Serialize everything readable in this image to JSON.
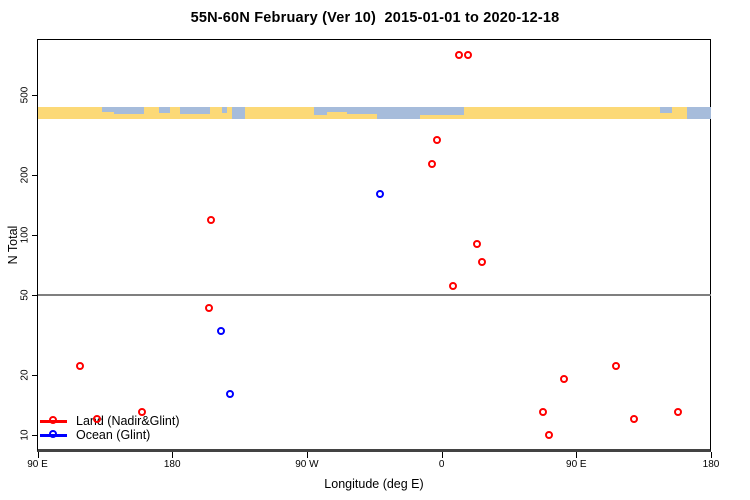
{
  "title": "55N-60N February (Ver 10)  2015-01-01 to 2020-12-18",
  "colors": {
    "land_series": "#ff0000",
    "ocean_series": "#0000ff",
    "map_land": "#fcd977",
    "map_ocean": "#a6bcdb",
    "reference_line": "#7f7f7f",
    "axis": "#000000"
  },
  "legend": {
    "items": [
      {
        "label": "Land (Nadir&Glint)",
        "color": "#ff0000"
      },
      {
        "label": "Ocean (Glint)",
        "color": "#0000ff"
      }
    ]
  },
  "chart_data": {
    "type": "scatter",
    "title": "55N-60N February (Ver 10)  2015-01-01 to 2020-12-18",
    "xlabel": "Longitude (deg E)",
    "ylabel": "N Total",
    "x_axis": {
      "scale": "linear",
      "range_deg_east_continuous": [
        90,
        540
      ],
      "tick_values": [
        90,
        180,
        270,
        360,
        450,
        540
      ],
      "tick_labels": [
        "90 E",
        "180",
        "90 W",
        "0",
        "90 E",
        "180"
      ]
    },
    "y_axis": {
      "scale": "log10",
      "range": [
        9.2,
        950
      ],
      "tick_values": [
        10,
        20,
        50,
        100,
        200,
        500
      ],
      "tick_labels": [
        "10",
        "20",
        "50",
        "100",
        "200",
        "500"
      ]
    },
    "reference_line_y": 50,
    "grid": "off",
    "legend_position": "bottom-left-inside",
    "series": [
      {
        "name": "Land (Nadir&Glint)",
        "color": "#ff0000",
        "marker": "open-circle",
        "points": [
          {
            "lon": 119,
            "n": 22
          },
          {
            "lon": 130,
            "n": 12
          },
          {
            "lon": 160,
            "n": 13
          },
          {
            "lon": 205,
            "n": 43
          },
          {
            "lon": 206,
            "n": 118
          },
          {
            "lon": 354,
            "n": 224
          },
          {
            "lon": 357,
            "n": 296
          },
          {
            "lon": 368,
            "n": 55
          },
          {
            "lon": 372,
            "n": 788
          },
          {
            "lon": 378,
            "n": 794
          },
          {
            "lon": 384,
            "n": 90
          },
          {
            "lon": 387,
            "n": 73
          },
          {
            "lon": 428,
            "n": 13
          },
          {
            "lon": 432,
            "n": 10
          },
          {
            "lon": 442,
            "n": 19
          },
          {
            "lon": 477,
            "n": 22
          },
          {
            "lon": 489,
            "n": 12
          },
          {
            "lon": 518,
            "n": 13
          }
        ]
      },
      {
        "name": "Ocean (Glint)",
        "color": "#0000ff",
        "marker": "open-circle",
        "points": [
          {
            "lon": 213,
            "n": 33
          },
          {
            "lon": 219,
            "n": 16
          },
          {
            "lon": 319,
            "n": 159
          }
        ]
      }
    ],
    "map_band": {
      "description": "land/ocean strip for 55N-60N latitude belt",
      "value_range": [
        380,
        436
      ],
      "land_color": "#fcd977",
      "ocean_color": "#a6bcdb",
      "ocean_segments": [
        {
          "lon0": 133.0,
          "lon1": 141.0,
          "frac": 0.4
        },
        {
          "lon0": 141.0,
          "lon1": 161.0,
          "frac": 0.6
        },
        {
          "lon0": 171.0,
          "lon1": 178.5,
          "frac": 0.5
        },
        {
          "lon0": 185.0,
          "lon1": 205.0,
          "frac": 0.6
        },
        {
          "lon0": 213.3,
          "lon1": 216.6,
          "frac": 0.5
        },
        {
          "lon0": 220.0,
          "lon1": 228.6,
          "frac": 1.0
        },
        {
          "lon0": 274.7,
          "lon1": 283.4,
          "frac": 0.7
        },
        {
          "lon0": 283.4,
          "lon1": 296.8,
          "frac": 0.4
        },
        {
          "lon0": 296.8,
          "lon1": 316.8,
          "frac": 0.6
        },
        {
          "lon0": 316.8,
          "lon1": 345.6,
          "frac": 1.0
        },
        {
          "lon0": 345.6,
          "lon1": 375.0,
          "frac": 0.7
        },
        {
          "lon0": 506.0,
          "lon1": 514.0,
          "frac": 0.5
        },
        {
          "lon0": 524.0,
          "lon1": 540.0,
          "frac": 1.0
        }
      ]
    }
  }
}
